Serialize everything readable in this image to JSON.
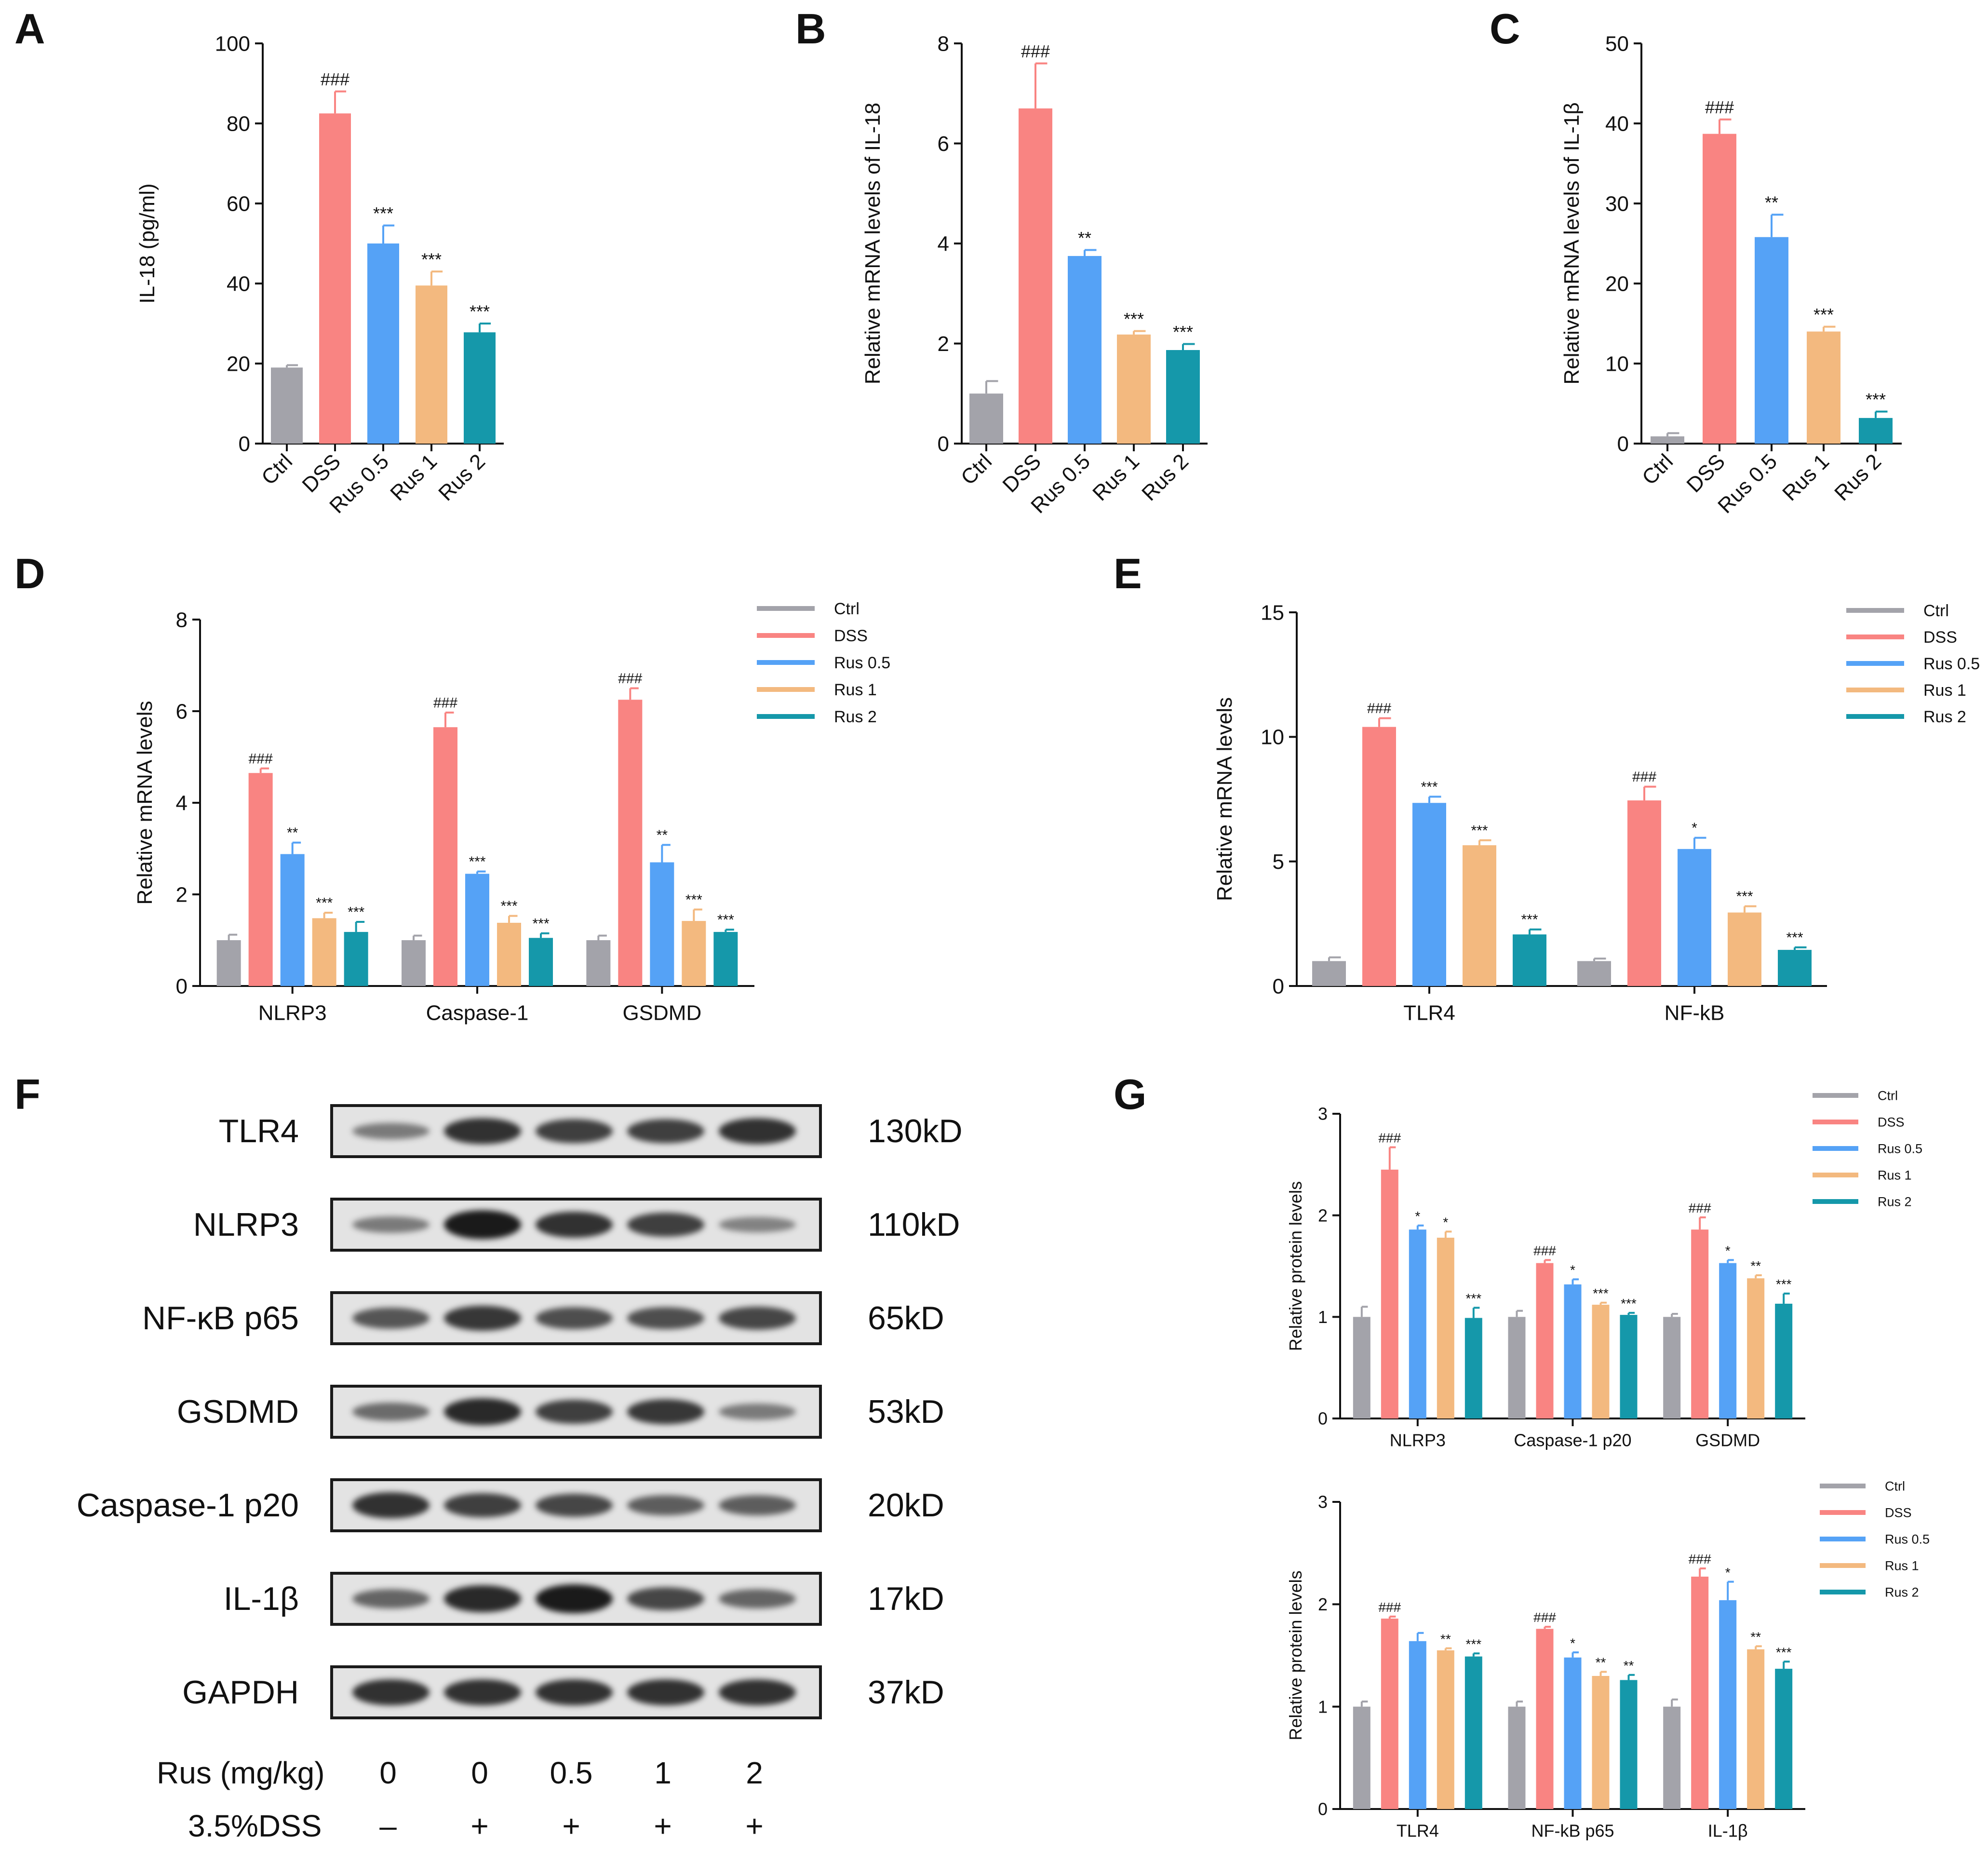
{
  "panel_letters": [
    "A",
    "B",
    "C",
    "D",
    "E",
    "F",
    "G"
  ],
  "colors": {
    "Ctrl": "#a3a3aa",
    "DSS": "#f98482",
    "Rus 0.5": "#55a2f6",
    "Rus 1": "#f3b97f",
    "Rus 2": "#1598aa"
  },
  "chart_data": [
    {
      "id": "A",
      "type": "bar",
      "categories": [
        "Ctrl",
        "DSS",
        "Rus 0.5",
        "Rus 1",
        "Rus 2"
      ],
      "values": [
        19,
        82.5,
        50,
        39.5,
        27.8
      ],
      "errors": [
        0.6,
        5.5,
        4.5,
        3.5,
        2.2
      ],
      "annotations": [
        "",
        "###",
        "***",
        "***",
        "***"
      ],
      "ylabel": "IL-18 (pg/ml)",
      "ylim": [
        0,
        100
      ],
      "yticks": [
        "0",
        "20",
        "40",
        "60",
        "80",
        "100"
      ]
    },
    {
      "id": "B",
      "type": "bar",
      "categories": [
        "Ctrl",
        "DSS",
        "Rus 0.5",
        "Rus 1",
        "Rus 2"
      ],
      "values": [
        1.0,
        6.7,
        3.75,
        2.18,
        1.87
      ],
      "errors": [
        0.25,
        0.9,
        0.12,
        0.07,
        0.12
      ],
      "annotations": [
        "",
        "###",
        "**",
        "***",
        "***"
      ],
      "ylabel": "Relative  mRNA levels of IL-18",
      "ylim": [
        0,
        8
      ],
      "yticks": [
        "0",
        "2",
        "4",
        "6",
        "8"
      ]
    },
    {
      "id": "C",
      "type": "bar",
      "categories": [
        "Ctrl",
        "DSS",
        "Rus 0.5",
        "Rus 1",
        "Rus 2"
      ],
      "values": [
        0.9,
        38.7,
        25.8,
        14.0,
        3.2
      ],
      "errors": [
        0.4,
        1.8,
        2.8,
        0.6,
        0.8
      ],
      "annotations": [
        "",
        "###",
        "**",
        "***",
        "***"
      ],
      "ylabel": "Relative  mRNA levels of IL-1β",
      "ylim": [
        0,
        50
      ],
      "yticks": [
        "0",
        "10",
        "20",
        "30",
        "40",
        "50"
      ]
    },
    {
      "id": "D",
      "type": "bar",
      "categories": [
        "NLRP3",
        "Caspase-1",
        "GSDMD"
      ],
      "series": [
        {
          "name": "Ctrl",
          "values": [
            1.0,
            1.0,
            1.0
          ],
          "errors": [
            0.12,
            0.1,
            0.1
          ],
          "annotations": [
            "",
            "",
            ""
          ]
        },
        {
          "name": "DSS",
          "values": [
            4.65,
            5.65,
            6.25
          ],
          "errors": [
            0.1,
            0.32,
            0.25
          ],
          "annotations": [
            "###",
            "###",
            "###"
          ]
        },
        {
          "name": "Rus 0.5",
          "values": [
            2.88,
            2.45,
            2.7
          ],
          "errors": [
            0.25,
            0.05,
            0.38
          ],
          "annotations": [
            "**",
            "***",
            "**"
          ]
        },
        {
          "name": "Rus 1",
          "values": [
            1.48,
            1.38,
            1.42
          ],
          "errors": [
            0.12,
            0.15,
            0.25
          ],
          "annotations": [
            "***",
            "***",
            "***"
          ]
        },
        {
          "name": "Rus 2",
          "values": [
            1.18,
            1.05,
            1.18
          ],
          "errors": [
            0.22,
            0.1,
            0.05
          ],
          "annotations": [
            "***",
            "***",
            "***"
          ]
        }
      ],
      "ylabel": "Relative  mRNA levels",
      "ylim": [
        0,
        8
      ],
      "yticks": [
        "0",
        "2",
        "4",
        "6",
        "8"
      ],
      "legend": "top-right"
    },
    {
      "id": "E",
      "type": "bar",
      "categories": [
        "TLR4",
        "NF-kB"
      ],
      "series": [
        {
          "name": "Ctrl",
          "values": [
            1.0,
            1.0
          ],
          "errors": [
            0.15,
            0.1
          ],
          "annotations": [
            "",
            ""
          ]
        },
        {
          "name": "DSS",
          "values": [
            10.4,
            7.45
          ],
          "errors": [
            0.35,
            0.55
          ],
          "annotations": [
            "###",
            "###"
          ]
        },
        {
          "name": "Rus 0.5",
          "values": [
            7.35,
            5.5
          ],
          "errors": [
            0.25,
            0.45
          ],
          "annotations": [
            "***",
            "*"
          ]
        },
        {
          "name": "Rus 1",
          "values": [
            5.65,
            2.95
          ],
          "errors": [
            0.2,
            0.25
          ],
          "annotations": [
            "***",
            "***"
          ]
        },
        {
          "name": "Rus 2",
          "values": [
            2.07,
            1.45
          ],
          "errors": [
            0.2,
            0.1
          ],
          "annotations": [
            "***",
            "***"
          ]
        }
      ],
      "ylabel": "Relative  mRNA levels",
      "ylim": [
        0,
        15
      ],
      "yticks": [
        "0",
        "5",
        "10",
        "15"
      ],
      "legend": "top-right"
    },
    {
      "id": "G1",
      "type": "bar",
      "categories": [
        "NLRP3",
        "Caspase-1 p20",
        "GSDMD"
      ],
      "series": [
        {
          "name": "Ctrl",
          "values": [
            1.0,
            1.0,
            1.0
          ],
          "errors": [
            0.1,
            0.06,
            0.03
          ],
          "annotations": [
            "",
            "",
            ""
          ]
        },
        {
          "name": "DSS",
          "values": [
            2.45,
            1.53,
            1.86
          ],
          "errors": [
            0.22,
            0.03,
            0.12
          ],
          "annotations": [
            "###",
            "###",
            "###"
          ]
        },
        {
          "name": "Rus 0.5",
          "values": [
            1.86,
            1.32,
            1.53
          ],
          "errors": [
            0.04,
            0.05,
            0.03
          ],
          "annotations": [
            "*",
            "*",
            "*"
          ]
        },
        {
          "name": "Rus 1",
          "values": [
            1.78,
            1.12,
            1.38
          ],
          "errors": [
            0.06,
            0.02,
            0.03
          ],
          "annotations": [
            "*",
            "***",
            "**"
          ]
        },
        {
          "name": "Rus 2",
          "values": [
            0.99,
            1.02,
            1.13
          ],
          "errors": [
            0.1,
            0.02,
            0.1
          ],
          "annotations": [
            "***",
            "***",
            "***"
          ]
        }
      ],
      "ylabel": "Relative protein levels",
      "ylim": [
        0,
        3
      ],
      "yticks": [
        "0",
        "1",
        "2",
        "3"
      ],
      "legend": "top-right"
    },
    {
      "id": "G2",
      "type": "bar",
      "categories": [
        "TLR4",
        "NF-kB p65",
        "IL-1β"
      ],
      "series": [
        {
          "name": "Ctrl",
          "values": [
            1.0,
            1.0,
            1.0
          ],
          "errors": [
            0.05,
            0.05,
            0.07
          ],
          "annotations": [
            "",
            "",
            ""
          ]
        },
        {
          "name": "DSS",
          "values": [
            1.86,
            1.76,
            2.27
          ],
          "errors": [
            0.02,
            0.02,
            0.08
          ],
          "annotations": [
            "###",
            "###",
            "###"
          ]
        },
        {
          "name": "Rus 0.5",
          "values": [
            1.64,
            1.48,
            2.04
          ],
          "errors": [
            0.08,
            0.05,
            0.18
          ],
          "annotations": [
            "",
            "*",
            "*"
          ]
        },
        {
          "name": "Rus 1",
          "values": [
            1.55,
            1.3,
            1.56
          ],
          "errors": [
            0.02,
            0.04,
            0.03
          ],
          "annotations": [
            "**",
            "**",
            "**"
          ]
        },
        {
          "name": "Rus 2",
          "values": [
            1.49,
            1.26,
            1.37
          ],
          "errors": [
            0.03,
            0.05,
            0.07
          ],
          "annotations": [
            "***",
            "**",
            "***"
          ]
        }
      ],
      "ylabel": "Relative protein levels",
      "ylim": [
        0,
        3
      ],
      "yticks": [
        "0",
        "1",
        "2",
        "3"
      ],
      "legend": "top-right"
    }
  ],
  "blot": {
    "rows": [
      {
        "protein": "TLR4",
        "mw": "130kD",
        "intensity": [
          0.35,
          0.85,
          0.75,
          0.75,
          0.85
        ]
      },
      {
        "protein": "NLRP3",
        "mw": "110kD",
        "intensity": [
          0.35,
          1.0,
          0.85,
          0.75,
          0.3
        ]
      },
      {
        "protein": "NF-κB p65",
        "mw": "65kD",
        "intensity": [
          0.6,
          0.8,
          0.65,
          0.65,
          0.7
        ]
      },
      {
        "protein": "GSDMD",
        "mw": "53kD",
        "intensity": [
          0.45,
          0.9,
          0.75,
          0.8,
          0.35
        ]
      },
      {
        "protein": "Caspase-1 p20",
        "mw": "20kD",
        "intensity": [
          0.85,
          0.75,
          0.7,
          0.55,
          0.55
        ]
      },
      {
        "protein": "IL-1β",
        "mw": "17kD",
        "intensity": [
          0.5,
          0.9,
          1.0,
          0.7,
          0.5
        ]
      },
      {
        "protein": "GAPDH",
        "mw": "37kD",
        "intensity": [
          0.85,
          0.85,
          0.85,
          0.85,
          0.85
        ]
      }
    ],
    "rus_label": "Rus (mg/kg)",
    "rus_values": [
      "0",
      "0",
      "0.5",
      "1",
      "2"
    ],
    "dss_label": "3.5%DSS",
    "dss_values": [
      "–",
      "+",
      "+",
      "+",
      "+"
    ]
  }
}
